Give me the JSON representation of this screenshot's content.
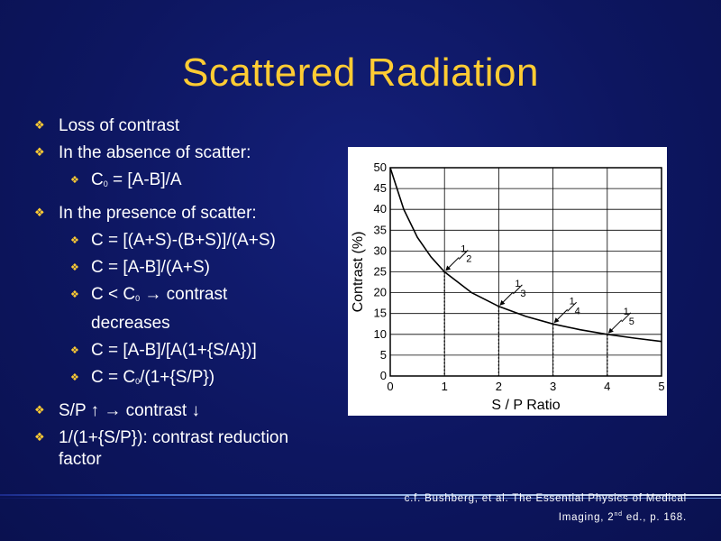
{
  "slide": {
    "title": "Scattered Radiation",
    "bullets": {
      "b1": "Loss of contrast",
      "b2": "In the absence of scatter:",
      "b2_1_pre": "C",
      "b2_1_sub": "0",
      "b2_1_post": " = [A-B]/A",
      "b3": "In the presence of scatter:",
      "b3_1": "C = [(A+S)-(B+S)]/(A+S)",
      "b3_2": "C = [A-B]/(A+S)",
      "b3_3_pre": "C < C",
      "b3_3_sub": "0",
      "b3_3_post": "→ contrast",
      "b3_3_cont": "decreases",
      "b3_4": "C = [A-B]/[A(1+{S/A})]",
      "b3_5_pre": "C = C",
      "b3_5_sub": "0",
      "b3_5_post": "/(1+{S/P})",
      "b4": "S/P ↑ → contrast ↓",
      "b5_line1": "1/(1+{S/P}): contrast reduction",
      "b5_line2": "factor"
    },
    "citation": {
      "line1": "c.f. Bushberg, et al. The Essential Physics of Medical",
      "line2_pre": "Imaging, 2",
      "line2_sup": "nd",
      "line2_post": " ed., p. 168."
    },
    "colors": {
      "title": "#ffcc33",
      "bullet_arrow": "#ffcc33",
      "background": "#0d1660"
    }
  },
  "chart_data": {
    "type": "line",
    "xlabel": "S / P Ratio",
    "ylabel": "Contrast (%)",
    "xlim": [
      0,
      5
    ],
    "ylim": [
      0,
      50
    ],
    "xticks": [
      0,
      1,
      2,
      3,
      4,
      5
    ],
    "yticks": [
      0,
      5,
      10,
      15,
      20,
      25,
      30,
      35,
      40,
      45,
      50
    ],
    "grid": true,
    "series": [
      {
        "x": [
          0,
          0.25,
          0.5,
          0.75,
          1,
          1.5,
          2,
          2.5,
          3,
          3.5,
          4,
          4.5,
          5
        ],
        "values": [
          50,
          40,
          33.3,
          28.6,
          25,
          20,
          16.7,
          14.3,
          12.5,
          11.1,
          10,
          9.1,
          8.3
        ]
      }
    ],
    "annotations": [
      {
        "x": 1,
        "y": 25,
        "num": "1",
        "den": "2"
      },
      {
        "x": 2,
        "y": 16.7,
        "num": "1",
        "den": "3"
      },
      {
        "x": 3,
        "y": 12.5,
        "num": "1",
        "den": "4"
      },
      {
        "x": 4,
        "y": 10,
        "num": "1",
        "den": "5"
      }
    ]
  }
}
